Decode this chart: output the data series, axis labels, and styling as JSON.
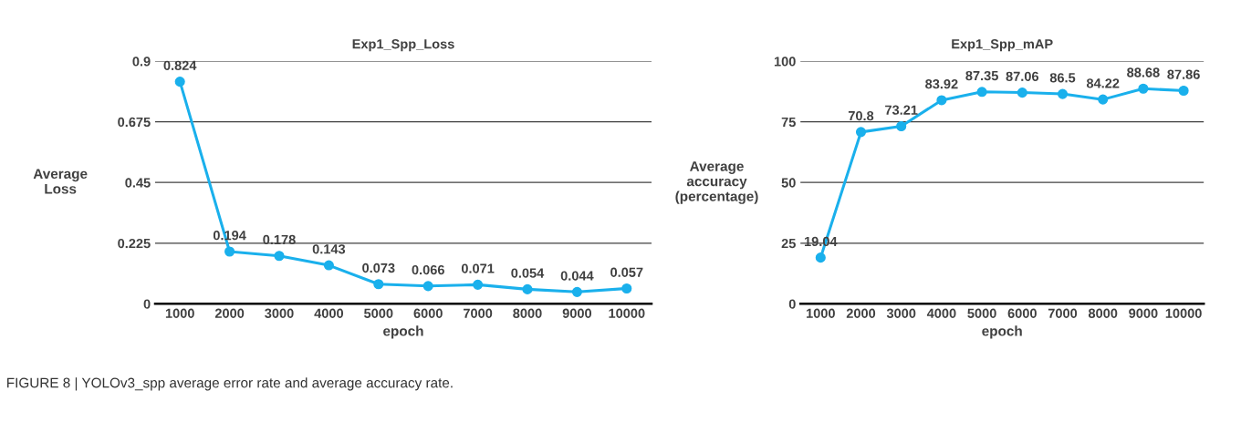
{
  "chart_data": [
    {
      "type": "line",
      "title": "Exp1_Spp_Loss",
      "xlabel": "epoch",
      "ylabel": "Average\nLoss",
      "categories": [
        "1000",
        "2000",
        "3000",
        "4000",
        "5000",
        "6000",
        "7000",
        "8000",
        "9000",
        "10000"
      ],
      "series": [
        {
          "color": "#1ab0ec",
          "values": [
            0.824,
            0.194,
            0.178,
            0.143,
            0.073,
            0.066,
            0.071,
            0.054,
            0.044,
            0.057
          ]
        }
      ],
      "ylim": [
        0,
        0.9
      ],
      "yticks": [
        0,
        0.225,
        0.45,
        0.675,
        0.9
      ],
      "grid": "y",
      "marker": "circle",
      "line_style": "solid",
      "data_labels": true,
      "annotations": [
        "FIGURE 8 | YOLOv3_spp average error rate and average accuracy rate."
      ]
    },
    {
      "type": "line",
      "title": "Exp1_Spp_mAP",
      "xlabel": "epoch",
      "ylabel": "Average\naccuracy\n(percentage)",
      "categories": [
        "1000",
        "2000",
        "3000",
        "4000",
        "5000",
        "6000",
        "7000",
        "8000",
        "9000",
        "10000"
      ],
      "series": [
        {
          "color": "#1ab0ec",
          "values": [
            19.04,
            70.8,
            73.21,
            83.92,
            87.35,
            87.06,
            86.5,
            84.22,
            88.68,
            87.86
          ]
        }
      ],
      "ylim": [
        0,
        100
      ],
      "yticks": [
        0,
        25,
        50,
        75,
        100
      ],
      "grid": "y",
      "marker": "circle",
      "line_style": "solid",
      "data_labels": true
    }
  ]
}
